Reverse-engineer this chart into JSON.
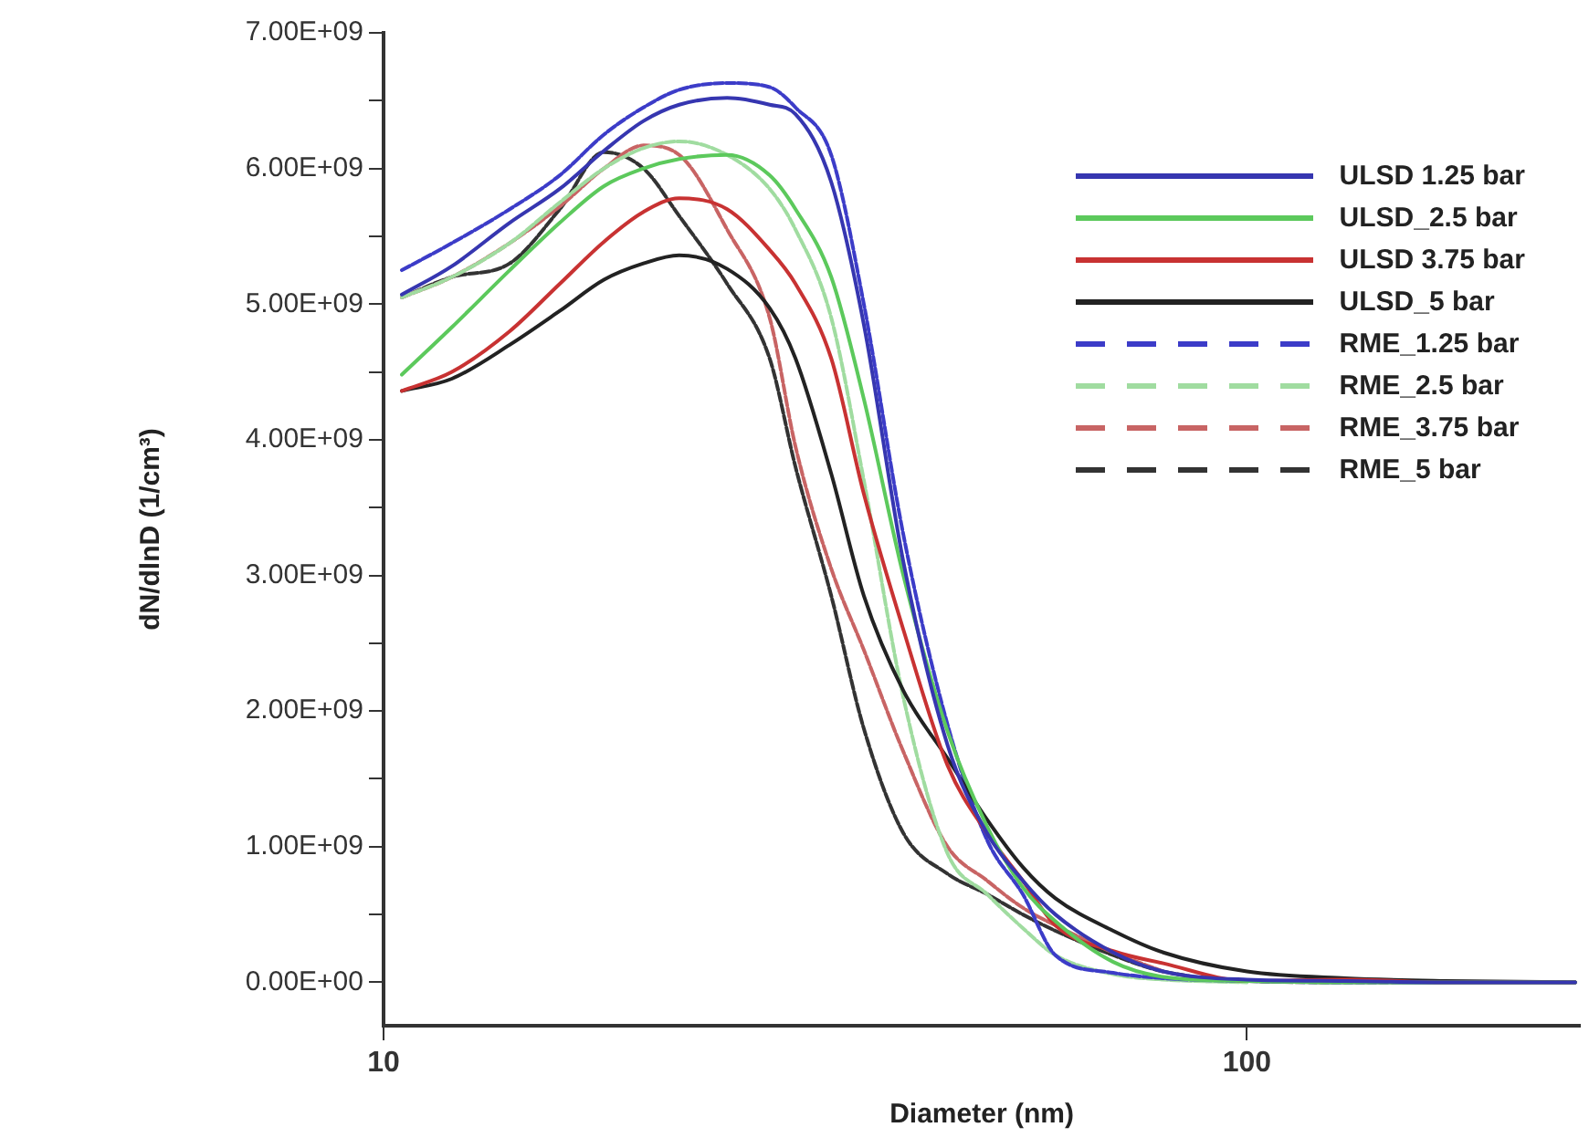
{
  "chart_data": {
    "type": "line",
    "xlabel": "Diameter (nm)",
    "ylabel": "dN/dlnD (1/cm³)",
    "log": "x",
    "grid": false,
    "legend": "top right",
    "marker": "none",
    "x": [
      10.5,
      12,
      14,
      16,
      18,
      20,
      22,
      25,
      28,
      30,
      33,
      36,
      40,
      45,
      50,
      55,
      60,
      70,
      80,
      100,
      130,
      170,
      240
    ],
    "xlim": [
      10,
      243
    ],
    "xticks": [
      10,
      100
    ],
    "ylim": [
      -320000000,
      7000000000
    ],
    "yticks": [
      {
        "value": 0,
        "label": "0.00E+00"
      },
      {
        "value": 500000000,
        "label": null
      },
      {
        "value": 1000000000,
        "label": "1.00E+09"
      },
      {
        "value": 1500000000,
        "label": null
      },
      {
        "value": 2000000000,
        "label": "2.00E+09"
      },
      {
        "value": 2500000000,
        "label": null
      },
      {
        "value": 3000000000,
        "label": "3.00E+09"
      },
      {
        "value": 3500000000,
        "label": null
      },
      {
        "value": 4000000000,
        "label": "4.00E+09"
      },
      {
        "value": 4500000000,
        "label": null
      },
      {
        "value": 5000000000,
        "label": "5.00E+09"
      },
      {
        "value": 5500000000,
        "label": null
      },
      {
        "value": 6000000000,
        "label": "6.00E+09"
      },
      {
        "value": 6500000000,
        "label": null
      },
      {
        "value": 7000000000,
        "label": "7.00E+09"
      }
    ],
    "series": [
      {
        "name": "ULSD 1.25 bar",
        "color": "#3636b0",
        "line_style": "solid",
        "values": [
          5070000000,
          5280000000,
          5600000000,
          5850000000,
          6130000000,
          6350000000,
          6470000000,
          6520000000,
          6470000000,
          6400000000,
          5900000000,
          4850000000,
          3100000000,
          1750000000,
          1100000000,
          750000000,
          500000000,
          220000000,
          80000000,
          20000000,
          10000000,
          0,
          0
        ]
      },
      {
        "name": "ULSD_2.5 bar",
        "color": "#5cc95c",
        "line_style": "solid",
        "values": [
          4480000000,
          4830000000,
          5250000000,
          5600000000,
          5870000000,
          6000000000,
          6070000000,
          6100000000,
          5950000000,
          5700000000,
          5200000000,
          4300000000,
          3000000000,
          1850000000,
          1150000000,
          700000000,
          450000000,
          150000000,
          40000000,
          10000000,
          0,
          0,
          0
        ]
      },
      {
        "name": "ULSD 3.75 bar",
        "color": "#c83232",
        "line_style": "solid",
        "values": [
          4360000000,
          4500000000,
          4800000000,
          5150000000,
          5460000000,
          5680000000,
          5780000000,
          5700000000,
          5400000000,
          5150000000,
          4600000000,
          3600000000,
          2600000000,
          1600000000,
          1100000000,
          750000000,
          420000000,
          230000000,
          140000000,
          10000000,
          20000000,
          0,
          0
        ]
      },
      {
        "name": "ULSD_5 bar",
        "color": "#222222",
        "line_style": "solid",
        "values": [
          4360000000,
          4450000000,
          4700000000,
          4950000000,
          5180000000,
          5300000000,
          5360000000,
          5260000000,
          4970000000,
          4600000000,
          3750000000,
          2850000000,
          2150000000,
          1650000000,
          1200000000,
          850000000,
          620000000,
          380000000,
          220000000,
          80000000,
          30000000,
          10000000,
          0
        ]
      },
      {
        "name": "RME_1.25 bar",
        "color": "#3c3cc8",
        "line_style": "dashed",
        "values": [
          5250000000,
          5450000000,
          5700000000,
          5950000000,
          6250000000,
          6450000000,
          6580000000,
          6630000000,
          6600000000,
          6450000000,
          6100000000,
          5000000000,
          3300000000,
          1900000000,
          1050000000,
          650000000,
          200000000,
          70000000,
          30000000,
          10000000,
          0,
          0,
          0
        ]
      },
      {
        "name": "RME_2.5 bar",
        "color": "#a0dca0",
        "line_style": "dashed",
        "values": [
          5050000000,
          5200000000,
          5450000000,
          5750000000,
          6000000000,
          6150000000,
          6200000000,
          6100000000,
          5850000000,
          5550000000,
          4900000000,
          3700000000,
          2100000000,
          950000000,
          650000000,
          400000000,
          200000000,
          60000000,
          20000000,
          0,
          null,
          null,
          null
        ]
      },
      {
        "name": "RME_3.75 bar",
        "color": "#c86464",
        "line_style": "dashed",
        "values": [
          5050000000,
          5200000000,
          5450000000,
          5720000000,
          6000000000,
          6170000000,
          6100000000,
          5550000000,
          4900000000,
          3950000000,
          3050000000,
          2450000000,
          1700000000,
          1000000000,
          750000000,
          550000000,
          420000000,
          220000000,
          80000000,
          null,
          null,
          null,
          null
        ]
      },
      {
        "name": "RME_5 bar",
        "color": "#333333",
        "line_style": "dashed",
        "values": [
          5050000000,
          5200000000,
          5300000000,
          5700000000,
          6120000000,
          6000000000,
          5650000000,
          5150000000,
          4600000000,
          3800000000,
          2850000000,
          1870000000,
          1100000000,
          800000000,
          650000000,
          500000000,
          380000000,
          200000000,
          80000000,
          10000000,
          0,
          0,
          0
        ]
      }
    ]
  }
}
